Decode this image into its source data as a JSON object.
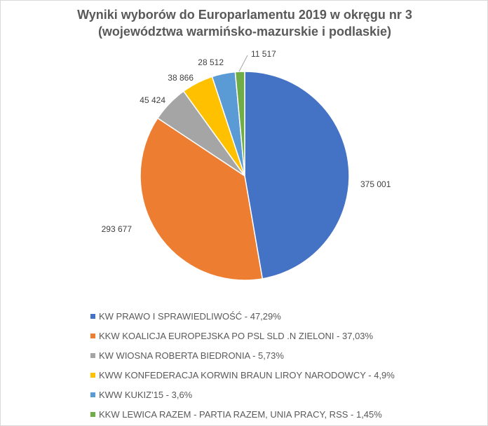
{
  "chart_data": {
    "type": "pie",
    "title": "Wyniki wyborów do Europarlamentu 2019 w okręgu nr 3",
    "subtitle": "(województwa warmińsko-mazurskie i podlaskie)",
    "slices": [
      {
        "label": "KW PRAWO I SPRAWIEDLIWOŚĆ - 47,29%",
        "value": 375001,
        "value_label": "375 001",
        "color": "#4472C4"
      },
      {
        "label": "KKW KOALICJA EUROPEJSKA PO PSL SLD .N ZIELONI - 37,03%",
        "value": 293677,
        "value_label": "293 677",
        "color": "#ED7D31"
      },
      {
        "label": "KW WIOSNA ROBERTA BIEDRONIA - 5,73%",
        "value": 45424,
        "value_label": "45 424",
        "color": "#A5A5A5"
      },
      {
        "label": "KWW KONFEDERACJA KORWIN BRAUN LIROY NARODOWCY - 4,9%",
        "value": 38866,
        "value_label": "38 866",
        "color": "#FFC000"
      },
      {
        "label": "KWW KUKIZ'15 - 3,6%",
        "value": 28512,
        "value_label": "28 512",
        "color": "#5B9BD5"
      },
      {
        "label": "KKW LEWICA RAZEM - PARTIA RAZEM, UNIA PRACY, RSS - 1,45%",
        "value": 11517,
        "value_label": "11 517",
        "color": "#70AD47"
      }
    ],
    "start_angle": "12 o'clock",
    "direction": "clockwise",
    "legend_position": "bottom"
  }
}
